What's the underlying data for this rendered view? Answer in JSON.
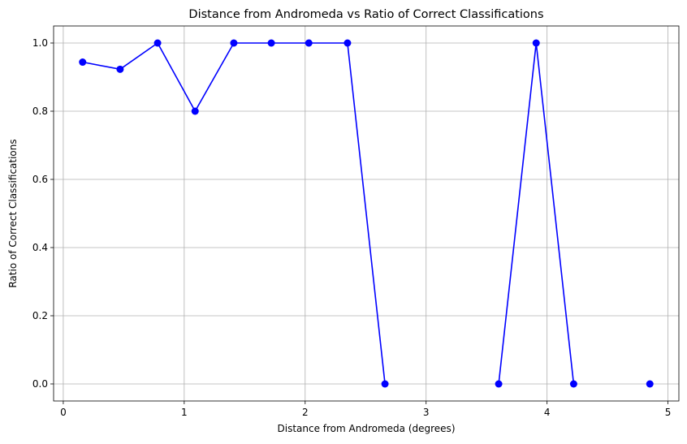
{
  "chart_data": {
    "type": "line",
    "title": "Distance from Andromeda vs Ratio of Correct Classifications",
    "xlabel": "Distance from Andromeda (degrees)",
    "ylabel": "Ratio of Correct Classifications",
    "xlim": [
      -0.08,
      5.09
    ],
    "ylim": [
      -0.05,
      1.05
    ],
    "x_ticks": [
      0,
      1,
      2,
      3,
      4,
      5
    ],
    "x_tick_labels": [
      "0",
      "1",
      "2",
      "3",
      "4",
      "5"
    ],
    "y_ticks": [
      0.0,
      0.2,
      0.4,
      0.6,
      0.8,
      1.0
    ],
    "y_tick_labels": [
      "0.0",
      "0.2",
      "0.4",
      "0.6",
      "0.8",
      "1.0"
    ],
    "grid": true,
    "legend": "none",
    "series": [
      {
        "color": "#0000ff",
        "marker": "circle",
        "segments": [
          [
            {
              "x": 0.16,
              "y": 0.944
            },
            {
              "x": 0.47,
              "y": 0.923
            },
            {
              "x": 0.78,
              "y": 1.0
            },
            {
              "x": 1.09,
              "y": 0.8
            },
            {
              "x": 1.41,
              "y": 1.0
            },
            {
              "x": 1.72,
              "y": 1.0
            },
            {
              "x": 2.03,
              "y": 1.0
            },
            {
              "x": 2.35,
              "y": 1.0
            },
            {
              "x": 2.66,
              "y": 0.0
            }
          ],
          [
            {
              "x": 3.6,
              "y": 0.0
            },
            {
              "x": 3.91,
              "y": 1.0
            },
            {
              "x": 4.22,
              "y": 0.0
            }
          ],
          [
            {
              "x": 4.85,
              "y": 0.0
            }
          ]
        ]
      }
    ]
  }
}
